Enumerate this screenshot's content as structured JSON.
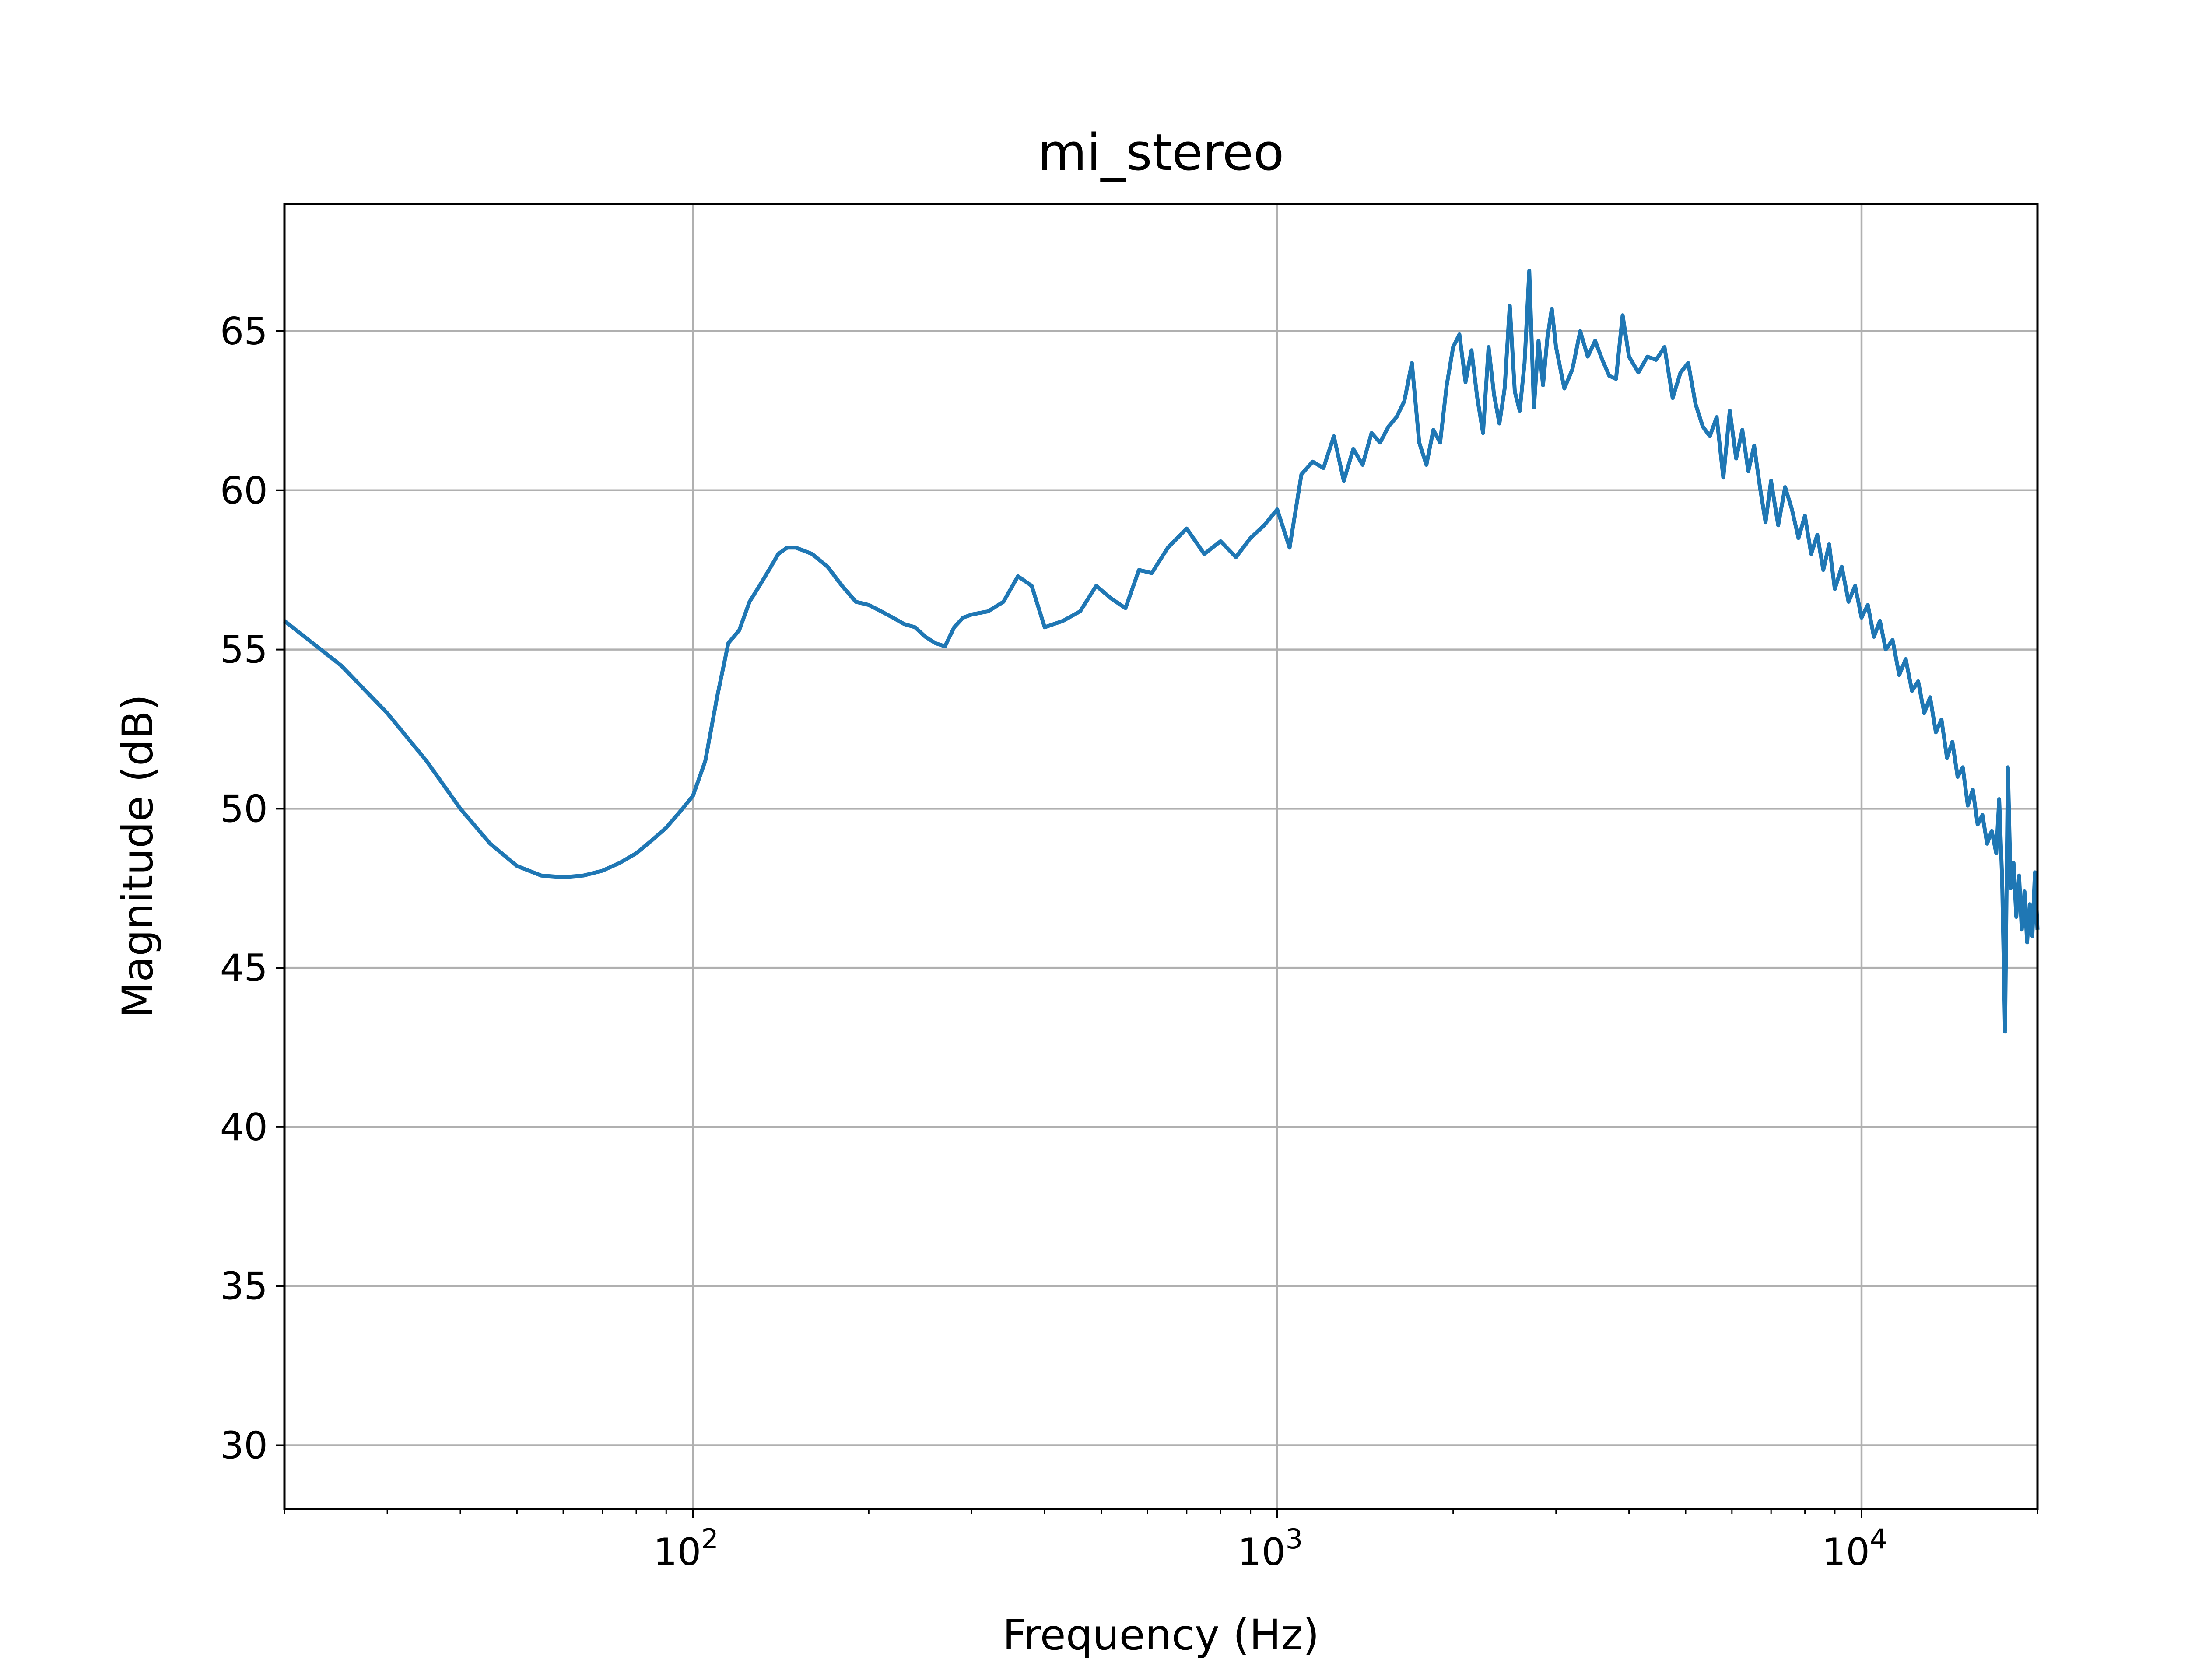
{
  "chart_data": {
    "type": "line",
    "title": "mi_stereo",
    "xlabel": "Frequency (Hz)",
    "ylabel": "Magnitude (dB)",
    "xscale": "log",
    "xlim": [
      20,
      20000
    ],
    "ylim": [
      28,
      69
    ],
    "grid": true,
    "x_ticks": [
      {
        "value": 100,
        "base": "10",
        "exp": "2"
      },
      {
        "value": 1000,
        "base": "10",
        "exp": "3"
      },
      {
        "value": 10000,
        "base": "10",
        "exp": "4"
      }
    ],
    "y_ticks": [
      30,
      35,
      40,
      45,
      50,
      55,
      60,
      65
    ],
    "line_color": "#1f77b4",
    "series": [
      {
        "x": [
          20,
          25,
          30,
          35,
          40,
          45,
          50,
          55,
          60,
          65,
          70,
          75,
          80,
          85,
          90,
          95,
          100,
          105,
          110,
          115,
          120,
          125,
          130,
          135,
          140,
          145,
          150,
          155,
          160,
          170,
          180,
          190,
          200,
          210,
          220,
          230,
          240,
          250,
          260,
          270,
          280,
          290,
          300,
          320,
          340,
          360,
          380,
          400,
          430,
          460,
          490,
          520,
          550,
          580,
          610,
          650,
          700,
          750,
          800,
          850,
          900,
          950,
          1000,
          1050,
          1100,
          1150,
          1200,
          1250,
          1300,
          1350,
          1400,
          1450,
          1500,
          1550,
          1600,
          1650,
          1700,
          1750,
          1800,
          1850,
          1900,
          1950,
          2000,
          2050,
          2100,
          2150,
          2200,
          2250,
          2300,
          2350,
          2400,
          2450,
          2500,
          2550,
          2600,
          2650,
          2700,
          2750,
          2800,
          2850,
          2900,
          2950,
          3000,
          3100,
          3200,
          3300,
          3400,
          3500,
          3600,
          3700,
          3800,
          3900,
          4000,
          4150,
          4300,
          4450,
          4600,
          4750,
          4900,
          5050,
          5200,
          5350,
          5500,
          5650,
          5800,
          5950,
          6100,
          6250,
          6400,
          6550,
          6700,
          6850,
          7000,
          7200,
          7400,
          7600,
          7800,
          8000,
          8200,
          8400,
          8600,
          8800,
          9000,
          9250,
          9500,
          9750,
          10000,
          10250,
          10500,
          10750,
          11000,
          11300,
          11600,
          11900,
          12200,
          12500,
          12800,
          13100,
          13400,
          13700,
          14000,
          14300,
          14600,
          14900,
          15200,
          15500,
          15800,
          16100,
          16400,
          16700,
          17000,
          17200,
          17400,
          17600,
          17800,
          18000,
          18200,
          18400,
          18600,
          18800,
          19000,
          19200,
          19400,
          19600,
          19800,
          20000
        ],
        "y": [
          55.9,
          54.5,
          53.0,
          51.5,
          50.0,
          48.9,
          48.2,
          47.9,
          47.85,
          47.9,
          48.05,
          48.3,
          48.6,
          49.0,
          49.4,
          49.9,
          50.4,
          51.5,
          53.5,
          55.2,
          55.6,
          56.5,
          57.0,
          57.5,
          58.0,
          58.2,
          58.2,
          58.1,
          58.0,
          57.6,
          57.0,
          56.5,
          56.4,
          56.2,
          56.0,
          55.8,
          55.7,
          55.4,
          55.2,
          55.1,
          55.7,
          56.0,
          56.1,
          56.2,
          56.5,
          57.3,
          57.0,
          55.7,
          55.9,
          56.2,
          57.0,
          56.6,
          56.3,
          57.5,
          57.4,
          58.2,
          58.8,
          58.0,
          58.4,
          57.9,
          58.5,
          58.9,
          59.4,
          58.2,
          60.5,
          60.9,
          60.7,
          61.7,
          60.3,
          61.3,
          60.8,
          61.8,
          61.5,
          62.0,
          62.3,
          62.8,
          64.0,
          61.5,
          60.8,
          61.9,
          61.5,
          63.3,
          64.5,
          64.9,
          63.4,
          64.4,
          62.9,
          61.8,
          64.5,
          63.0,
          62.1,
          63.2,
          65.8,
          63.1,
          62.5,
          64.0,
          66.9,
          62.6,
          64.7,
          63.3,
          64.8,
          65.7,
          64.5,
          63.2,
          63.8,
          65.0,
          64.2,
          64.7,
          64.1,
          63.6,
          63.5,
          65.5,
          64.2,
          63.7,
          64.2,
          64.1,
          64.5,
          62.9,
          63.7,
          64.0,
          62.7,
          62.0,
          61.7,
          62.3,
          60.4,
          62.5,
          61.0,
          61.9,
          60.6,
          61.4,
          60.1,
          59.0,
          60.3,
          58.9,
          60.1,
          59.4,
          58.5,
          59.2,
          58.0,
          58.6,
          57.5,
          58.3,
          56.9,
          57.6,
          56.5,
          57.0,
          56.0,
          56.4,
          55.4,
          55.9,
          55.0,
          55.3,
          54.2,
          54.7,
          53.7,
          54.0,
          53.0,
          53.5,
          52.4,
          52.8,
          51.6,
          52.1,
          51.0,
          51.3,
          50.1,
          50.6,
          49.5,
          49.8,
          48.9,
          49.3,
          48.6,
          50.3,
          47.8,
          43.0,
          51.3,
          47.5,
          48.3,
          46.6,
          47.9,
          46.2,
          47.4,
          45.8,
          47.0,
          46.0,
          48.0,
          46.2
        ]
      }
    ]
  }
}
